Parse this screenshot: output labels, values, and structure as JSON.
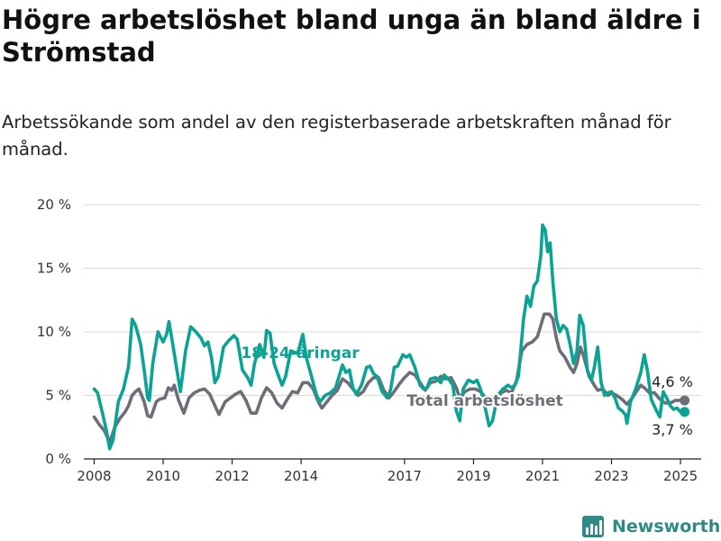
{
  "title": "Högre arbetslöshet bland unga än bland äldre i Strömstad",
  "subtitle": "Arbetssökande som andel av den registerbaserade arbetskraften månad för månad.",
  "brand": {
    "name": "Newsworthy"
  },
  "colors": {
    "youth": "#0aa394",
    "total": "#6e6e78",
    "grid": "#d9d9d9",
    "axis": "#222222",
    "brand": "#2f8a86"
  },
  "chart_data": {
    "type": "line",
    "y_tick_labels": [
      "0 %",
      "5 %",
      "10 %",
      "15 %",
      "20 %"
    ],
    "y_ticks": [
      0,
      5,
      10,
      15,
      20
    ],
    "ylim": [
      0,
      20
    ],
    "xlim": [
      2007.7,
      2025.6
    ],
    "x_ticks": [
      2008,
      2010,
      2012,
      2014,
      2017,
      2019,
      2021,
      2023,
      2025
    ],
    "x_tick_labels": [
      "2008",
      "2010",
      "2012",
      "2014",
      "2017",
      "2019",
      "2021",
      "2023",
      "2025"
    ],
    "grid": true,
    "series": [
      {
        "name": "18-24-åringar",
        "color_key": "youth",
        "points": [
          [
            2008.0,
            5.5
          ],
          [
            2008.1,
            5.2
          ],
          [
            2008.25,
            3.5
          ],
          [
            2008.35,
            2.3
          ],
          [
            2008.45,
            0.8
          ],
          [
            2008.55,
            1.5
          ],
          [
            2008.7,
            4.5
          ],
          [
            2008.85,
            5.5
          ],
          [
            2009.0,
            7.3
          ],
          [
            2009.1,
            11.0
          ],
          [
            2009.2,
            10.5
          ],
          [
            2009.35,
            9.0
          ],
          [
            2009.45,
            7.0
          ],
          [
            2009.55,
            4.8
          ],
          [
            2009.6,
            4.6
          ],
          [
            2009.7,
            7.5
          ],
          [
            2009.85,
            10.0
          ],
          [
            2010.0,
            9.2
          ],
          [
            2010.1,
            9.8
          ],
          [
            2010.17,
            10.8
          ],
          [
            2010.25,
            9.5
          ],
          [
            2010.4,
            7.0
          ],
          [
            2010.5,
            5.3
          ],
          [
            2010.65,
            8.5
          ],
          [
            2010.8,
            10.4
          ],
          [
            2010.95,
            10.0
          ],
          [
            2011.1,
            9.5
          ],
          [
            2011.2,
            8.9
          ],
          [
            2011.3,
            9.2
          ],
          [
            2011.4,
            8.0
          ],
          [
            2011.5,
            6.0
          ],
          [
            2011.6,
            6.5
          ],
          [
            2011.75,
            8.8
          ],
          [
            2011.9,
            9.3
          ],
          [
            2012.05,
            9.7
          ],
          [
            2012.15,
            9.4
          ],
          [
            2012.3,
            7.0
          ],
          [
            2012.45,
            6.4
          ],
          [
            2012.55,
            5.8
          ],
          [
            2012.65,
            7.5
          ],
          [
            2012.8,
            9.0
          ],
          [
            2012.92,
            8.0
          ],
          [
            2013.0,
            10.1
          ],
          [
            2013.1,
            9.9
          ],
          [
            2013.22,
            7.5
          ],
          [
            2013.35,
            6.5
          ],
          [
            2013.45,
            5.8
          ],
          [
            2013.55,
            6.5
          ],
          [
            2013.7,
            8.5
          ],
          [
            2013.9,
            8.3
          ],
          [
            2014.05,
            9.8
          ],
          [
            2014.15,
            8.0
          ],
          [
            2014.3,
            6.5
          ],
          [
            2014.45,
            5.0
          ],
          [
            2014.55,
            4.5
          ],
          [
            2014.7,
            5.0
          ],
          [
            2014.85,
            5.2
          ],
          [
            2015.0,
            5.6
          ],
          [
            2015.1,
            6.5
          ],
          [
            2015.2,
            7.4
          ],
          [
            2015.3,
            6.8
          ],
          [
            2015.4,
            7.0
          ],
          [
            2015.5,
            5.6
          ],
          [
            2015.6,
            5.1
          ],
          [
            2015.75,
            5.8
          ],
          [
            2015.9,
            7.2
          ],
          [
            2016.0,
            7.3
          ],
          [
            2016.1,
            6.7
          ],
          [
            2016.2,
            6.5
          ],
          [
            2016.35,
            5.3
          ],
          [
            2016.5,
            4.8
          ],
          [
            2016.6,
            5.5
          ],
          [
            2016.7,
            7.2
          ],
          [
            2016.8,
            7.3
          ],
          [
            2016.95,
            8.2
          ],
          [
            2017.05,
            8.0
          ],
          [
            2017.15,
            8.2
          ],
          [
            2017.3,
            7.2
          ],
          [
            2017.45,
            5.8
          ],
          [
            2017.55,
            5.5
          ],
          [
            2017.65,
            5.6
          ],
          [
            2017.75,
            6.3
          ],
          [
            2017.9,
            6.4
          ],
          [
            2018.05,
            6.0
          ],
          [
            2018.15,
            6.6
          ],
          [
            2018.3,
            6.2
          ],
          [
            2018.4,
            5.8
          ],
          [
            2018.5,
            3.8
          ],
          [
            2018.6,
            3.0
          ],
          [
            2018.7,
            5.5
          ],
          [
            2018.85,
            6.2
          ],
          [
            2019.0,
            6.0
          ],
          [
            2019.1,
            6.2
          ],
          [
            2019.2,
            5.5
          ],
          [
            2019.3,
            4.5
          ],
          [
            2019.45,
            2.6
          ],
          [
            2019.55,
            3.0
          ],
          [
            2019.7,
            5.0
          ],
          [
            2019.85,
            5.5
          ],
          [
            2020.0,
            5.8
          ],
          [
            2020.1,
            5.6
          ],
          [
            2020.2,
            5.8
          ],
          [
            2020.3,
            6.5
          ],
          [
            2020.35,
            8.0
          ],
          [
            2020.45,
            11.0
          ],
          [
            2020.55,
            12.8
          ],
          [
            2020.65,
            12.0
          ],
          [
            2020.75,
            13.6
          ],
          [
            2020.85,
            14.0
          ],
          [
            2020.95,
            16.0
          ],
          [
            2021.0,
            18.4
          ],
          [
            2021.08,
            18.0
          ],
          [
            2021.15,
            16.3
          ],
          [
            2021.22,
            17.0
          ],
          [
            2021.3,
            14.0
          ],
          [
            2021.4,
            11.0
          ],
          [
            2021.5,
            10.0
          ],
          [
            2021.6,
            10.5
          ],
          [
            2021.7,
            10.2
          ],
          [
            2021.8,
            9.0
          ],
          [
            2021.9,
            7.5
          ],
          [
            2022.0,
            8.5
          ],
          [
            2022.08,
            11.3
          ],
          [
            2022.18,
            10.5
          ],
          [
            2022.3,
            7.0
          ],
          [
            2022.42,
            6.2
          ],
          [
            2022.5,
            7.2
          ],
          [
            2022.6,
            8.8
          ],
          [
            2022.7,
            6.0
          ],
          [
            2022.8,
            5.0
          ],
          [
            2022.9,
            5.2
          ],
          [
            2023.0,
            5.3
          ],
          [
            2023.1,
            4.8
          ],
          [
            2023.2,
            4.0
          ],
          [
            2023.3,
            3.8
          ],
          [
            2023.4,
            3.5
          ],
          [
            2023.45,
            2.8
          ],
          [
            2023.55,
            4.5
          ],
          [
            2023.7,
            5.5
          ],
          [
            2023.85,
            6.8
          ],
          [
            2023.95,
            8.2
          ],
          [
            2024.05,
            6.8
          ],
          [
            2024.15,
            4.7
          ],
          [
            2024.3,
            3.8
          ],
          [
            2024.4,
            3.3
          ],
          [
            2024.5,
            5.3
          ],
          [
            2024.6,
            4.8
          ],
          [
            2024.7,
            4.2
          ],
          [
            2024.8,
            3.9
          ],
          [
            2024.9,
            4.0
          ],
          [
            2025.0,
            3.7
          ],
          [
            2025.12,
            3.7
          ]
        ]
      },
      {
        "name": "Total arbetslöshet",
        "color_key": "total",
        "points": [
          [
            2008.0,
            3.3
          ],
          [
            2008.15,
            2.7
          ],
          [
            2008.3,
            2.2
          ],
          [
            2008.45,
            1.3
          ],
          [
            2008.6,
            2.5
          ],
          [
            2008.75,
            3.2
          ],
          [
            2008.9,
            3.7
          ],
          [
            2009.0,
            4.2
          ],
          [
            2009.1,
            5.0
          ],
          [
            2009.2,
            5.3
          ],
          [
            2009.3,
            5.5
          ],
          [
            2009.45,
            4.5
          ],
          [
            2009.55,
            3.4
          ],
          [
            2009.65,
            3.3
          ],
          [
            2009.8,
            4.5
          ],
          [
            2009.9,
            4.7
          ],
          [
            2010.05,
            4.8
          ],
          [
            2010.15,
            5.6
          ],
          [
            2010.25,
            5.4
          ],
          [
            2010.32,
            5.8
          ],
          [
            2010.45,
            4.6
          ],
          [
            2010.6,
            3.6
          ],
          [
            2010.75,
            4.8
          ],
          [
            2010.9,
            5.2
          ],
          [
            2011.05,
            5.4
          ],
          [
            2011.2,
            5.5
          ],
          [
            2011.35,
            5.1
          ],
          [
            2011.5,
            4.2
          ],
          [
            2011.62,
            3.5
          ],
          [
            2011.8,
            4.5
          ],
          [
            2011.95,
            4.8
          ],
          [
            2012.1,
            5.1
          ],
          [
            2012.25,
            5.3
          ],
          [
            2012.4,
            4.6
          ],
          [
            2012.55,
            3.6
          ],
          [
            2012.7,
            3.6
          ],
          [
            2012.85,
            4.8
          ],
          [
            2013.0,
            5.6
          ],
          [
            2013.15,
            5.2
          ],
          [
            2013.3,
            4.4
          ],
          [
            2013.45,
            4.0
          ],
          [
            2013.6,
            4.7
          ],
          [
            2013.75,
            5.3
          ],
          [
            2013.9,
            5.2
          ],
          [
            2014.05,
            6.0
          ],
          [
            2014.2,
            6.0
          ],
          [
            2014.35,
            5.5
          ],
          [
            2014.5,
            4.5
          ],
          [
            2014.6,
            4.0
          ],
          [
            2014.75,
            4.5
          ],
          [
            2014.9,
            5.0
          ],
          [
            2015.05,
            5.4
          ],
          [
            2015.2,
            6.3
          ],
          [
            2015.35,
            6.0
          ],
          [
            2015.5,
            5.5
          ],
          [
            2015.65,
            5.0
          ],
          [
            2015.8,
            5.3
          ],
          [
            2015.95,
            6.0
          ],
          [
            2016.1,
            6.4
          ],
          [
            2016.25,
            6.4
          ],
          [
            2016.4,
            5.4
          ],
          [
            2016.55,
            4.8
          ],
          [
            2016.7,
            5.3
          ],
          [
            2016.85,
            5.9
          ],
          [
            2017.0,
            6.4
          ],
          [
            2017.15,
            6.8
          ],
          [
            2017.3,
            6.6
          ],
          [
            2017.45,
            6.0
          ],
          [
            2017.6,
            5.4
          ],
          [
            2017.75,
            6.0
          ],
          [
            2017.9,
            6.1
          ],
          [
            2018.05,
            6.5
          ],
          [
            2018.2,
            6.3
          ],
          [
            2018.35,
            6.4
          ],
          [
            2018.5,
            5.6
          ],
          [
            2018.6,
            4.8
          ],
          [
            2018.75,
            5.3
          ],
          [
            2018.9,
            5.5
          ],
          [
            2019.05,
            5.5
          ],
          [
            2019.2,
            5.3
          ],
          [
            2019.35,
            4.8
          ],
          [
            2019.5,
            4.2
          ],
          [
            2019.65,
            4.5
          ],
          [
            2019.8,
            5.2
          ],
          [
            2019.95,
            5.4
          ],
          [
            2020.1,
            5.2
          ],
          [
            2020.25,
            6.2
          ],
          [
            2020.4,
            8.5
          ],
          [
            2020.55,
            9.0
          ],
          [
            2020.7,
            9.2
          ],
          [
            2020.85,
            9.6
          ],
          [
            2020.95,
            10.5
          ],
          [
            2021.05,
            11.4
          ],
          [
            2021.2,
            11.4
          ],
          [
            2021.3,
            11.0
          ],
          [
            2021.4,
            9.5
          ],
          [
            2021.5,
            8.5
          ],
          [
            2021.65,
            8.0
          ],
          [
            2021.8,
            7.2
          ],
          [
            2021.9,
            6.8
          ],
          [
            2022.0,
            7.5
          ],
          [
            2022.1,
            8.8
          ],
          [
            2022.2,
            8.0
          ],
          [
            2022.35,
            6.5
          ],
          [
            2022.5,
            5.8
          ],
          [
            2022.6,
            5.4
          ],
          [
            2022.75,
            5.5
          ],
          [
            2022.9,
            5.0
          ],
          [
            2023.0,
            5.2
          ],
          [
            2023.15,
            5.0
          ],
          [
            2023.3,
            4.7
          ],
          [
            2023.45,
            4.3
          ],
          [
            2023.6,
            4.8
          ],
          [
            2023.75,
            5.4
          ],
          [
            2023.85,
            5.8
          ],
          [
            2023.95,
            5.6
          ],
          [
            2024.1,
            5.2
          ],
          [
            2024.25,
            5.2
          ],
          [
            2024.4,
            4.7
          ],
          [
            2024.55,
            4.4
          ],
          [
            2024.7,
            4.4
          ],
          [
            2024.85,
            4.6
          ],
          [
            2025.0,
            4.6
          ],
          [
            2025.12,
            4.6
          ]
        ]
      }
    ],
    "annotations": [
      {
        "text": "18-24-åringar",
        "color_key": "youth"
      },
      {
        "text": "Total arbetslöshet",
        "color_key": "total"
      },
      {
        "text": "4,6 %",
        "color_key": "axis"
      },
      {
        "text": "3,7 %",
        "color_key": "axis"
      }
    ]
  }
}
